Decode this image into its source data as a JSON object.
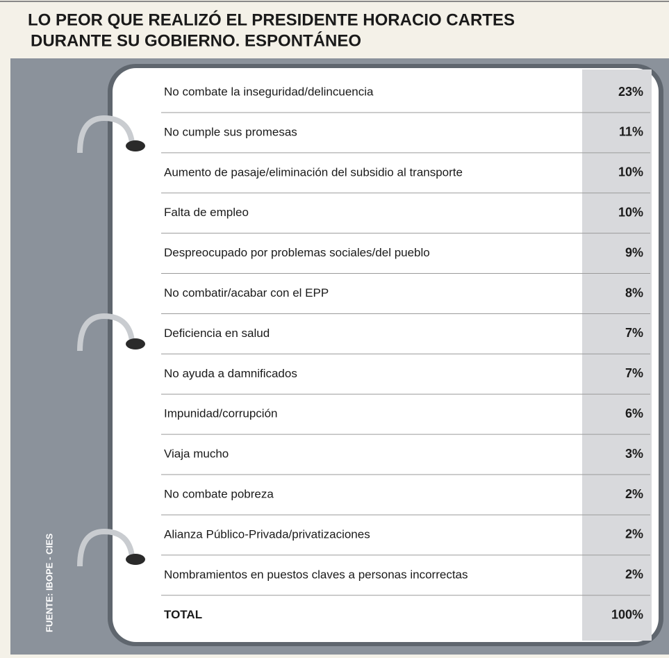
{
  "title": [
    "LO PEOR QUE REALIZÓ EL PRESIDENTE HORACIO CARTES",
    "DURANTE SU GOBIERNO. ESPONTÁNEO"
  ],
  "source": "FUENTE: IBOPE - CIES",
  "table": {
    "rows": [
      [
        "No combate la inseguridad/delincuencia",
        "23%"
      ],
      [
        "No cumple sus promesas",
        "11%"
      ],
      [
        "Aumento de pasaje/eliminación del subsidio al transporte",
        "10%"
      ],
      [
        "Falta de empleo",
        "10%"
      ],
      [
        "Despreocupado por problemas sociales/del pueblo",
        "9%"
      ],
      [
        "No combatir/acabar con el EPP",
        "8%"
      ],
      [
        "Deficiencia en salud",
        "7%"
      ],
      [
        "No ayuda a damnificados",
        "7%"
      ],
      [
        "Impunidad/corrupción",
        "6%"
      ],
      [
        "Viaja mucho",
        "3%"
      ],
      [
        "No combate pobreza",
        "2%"
      ],
      [
        "Alianza Público-Privada/privatizaciones",
        "2%"
      ],
      [
        "Nombramientos en puestos claves a personas incorrectas",
        "2%"
      ],
      [
        "TOTAL",
        "100%"
      ]
    ]
  }
}
